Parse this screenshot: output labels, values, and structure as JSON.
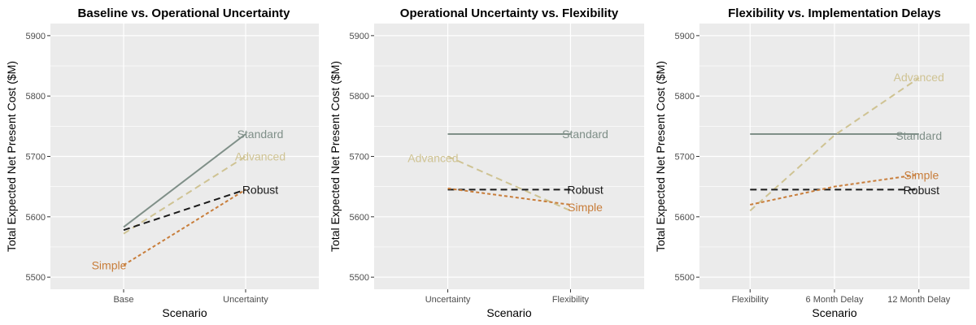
{
  "colors": {
    "Standard": "#7f8f88",
    "Advanced": "#cfc393",
    "Robust": "#1a1a1a",
    "Simple": "#c87d3a",
    "panel_bg": "#ebebeb",
    "grid": "#ffffff"
  },
  "chart_data": [
    {
      "type": "line",
      "title": "Baseline vs. Operational Uncertainty",
      "xlabel": "Scenario",
      "ylabel": "Total Expected Net Present Cost ($M)",
      "categories": [
        "Base",
        "Uncertainty"
      ],
      "ylim": [
        5480,
        5920
      ],
      "yticks": [
        5500,
        5600,
        5700,
        5800,
        5900
      ],
      "grid": true,
      "series": [
        {
          "name": "Standard",
          "values": [
            5583,
            5737
          ],
          "dash": "solid"
        },
        {
          "name": "Advanced",
          "values": [
            5572,
            5700
          ],
          "dash": "long"
        },
        {
          "name": "Robust",
          "values": [
            5578,
            5645
          ],
          "dash": "long"
        },
        {
          "name": "Simple",
          "values": [
            5520,
            5645
          ],
          "dash": "short"
        }
      ],
      "labels": [
        {
          "text": "Standard",
          "series": "Standard",
          "x": 2.12,
          "y": 5737
        },
        {
          "text": "Advanced",
          "series": "Advanced",
          "x": 2.12,
          "y": 5700
        },
        {
          "text": "Robust",
          "series": "Robust",
          "x": 2.12,
          "y": 5645
        },
        {
          "text": "Simple",
          "series": "Simple",
          "x": 0.88,
          "y": 5520
        }
      ]
    },
    {
      "type": "line",
      "title": "Operational Uncertainty vs. Flexibility",
      "xlabel": "Scenario",
      "ylabel": "Total Expected Net Present Cost ($M)",
      "categories": [
        "Uncertainty",
        "Flexibility"
      ],
      "ylim": [
        5480,
        5920
      ],
      "yticks": [
        5500,
        5600,
        5700,
        5800,
        5900
      ],
      "grid": true,
      "series": [
        {
          "name": "Standard",
          "values": [
            5737,
            5737
          ],
          "dash": "solid"
        },
        {
          "name": "Advanced",
          "values": [
            5700,
            5610
          ],
          "dash": "long"
        },
        {
          "name": "Robust",
          "values": [
            5645,
            5645
          ],
          "dash": "long"
        },
        {
          "name": "Simple",
          "values": [
            5647,
            5620
          ],
          "dash": "short"
        }
      ],
      "labels": [
        {
          "text": "Standard",
          "series": "Standard",
          "x": 2.12,
          "y": 5737
        },
        {
          "text": "Advanced",
          "series": "Advanced",
          "x": 0.88,
          "y": 5697
        },
        {
          "text": "Robust",
          "series": "Robust",
          "x": 2.12,
          "y": 5645
        },
        {
          "text": "Simple",
          "series": "Simple",
          "x": 2.12,
          "y": 5616
        }
      ]
    },
    {
      "type": "line",
      "title": "Flexibility vs. Implementation Delays",
      "xlabel": "Scenario",
      "ylabel": "Total Expected Net Present Cost ($M)",
      "categories": [
        "Flexibility",
        "6 Month Delay",
        "12 Month Delay"
      ],
      "ylim": [
        5480,
        5920
      ],
      "yticks": [
        5500,
        5600,
        5700,
        5800,
        5900
      ],
      "grid": true,
      "series": [
        {
          "name": "Standard",
          "values": [
            5737,
            5737,
            5737
          ],
          "dash": "solid"
        },
        {
          "name": "Advanced",
          "values": [
            5610,
            5735,
            5830
          ],
          "dash": "long"
        },
        {
          "name": "Robust",
          "values": [
            5645,
            5645,
            5645
          ],
          "dash": "long"
        },
        {
          "name": "Simple",
          "values": [
            5620,
            5650,
            5670
          ],
          "dash": "short"
        }
      ],
      "labels": [
        {
          "text": "Advanced",
          "series": "Advanced",
          "x": 3.0,
          "y": 5831
        },
        {
          "text": "Standard",
          "series": "Standard",
          "x": 3.0,
          "y": 5734
        },
        {
          "text": "Simple",
          "series": "Simple",
          "x": 3.03,
          "y": 5669
        },
        {
          "text": "Robust",
          "series": "Robust",
          "x": 3.03,
          "y": 5644
        }
      ]
    }
  ]
}
